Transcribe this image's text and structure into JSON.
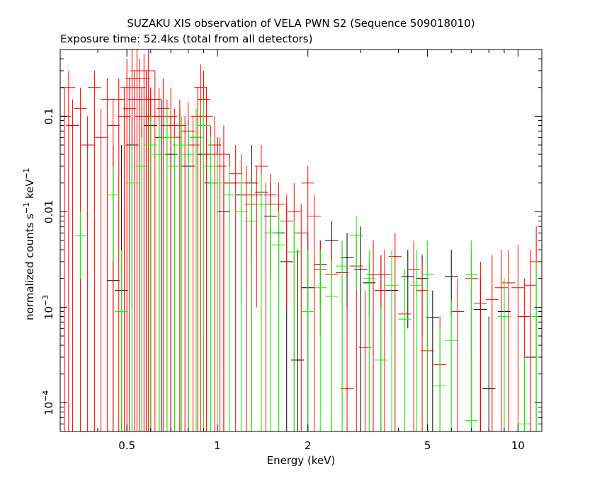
{
  "chart_data": {
    "type": "scatter",
    "title": "SUZAKU XIS observation of VELA PWN S2 (Sequence 509018010)",
    "subtitle": "Exposure time: 52.4ks (total from all detectors)",
    "xlabel": "Energy (keV)",
    "ylabel": "normalized counts s-1 keV-1",
    "x_scale": "log",
    "y_scale": "log",
    "xlim": [
      0.3,
      12
    ],
    "ylim": [
      5e-05,
      0.5
    ],
    "x_ticks": [
      {
        "value": 0.5,
        "label": "0.5"
      },
      {
        "value": 1,
        "label": "1"
      },
      {
        "value": 2,
        "label": "2"
      },
      {
        "value": 5,
        "label": "5"
      },
      {
        "value": 10,
        "label": "10"
      }
    ],
    "y_ticks": [
      {
        "value": 0.0001,
        "base": "10",
        "exp": "−4"
      },
      {
        "value": 0.001,
        "base": "10",
        "exp": "−3"
      },
      {
        "value": 0.01,
        "label": "0.01"
      },
      {
        "value": 0.1,
        "label": "0.1"
      }
    ],
    "series": [
      {
        "color": "#000000",
        "points": [
          [
            0.45,
            0.0019,
            0.05,
            -1
          ],
          [
            0.48,
            0.0015,
            0.05,
            -1
          ],
          [
            0.52,
            0.05,
            0.1,
            0.001
          ],
          [
            0.56,
            0.03,
            0.08,
            -1
          ],
          [
            0.6,
            0.08,
            0.2,
            -1
          ],
          [
            0.65,
            0.06,
            0.15,
            -1
          ],
          [
            0.7,
            0.04,
            0.1,
            -1
          ],
          [
            0.75,
            0.05,
            0.12,
            -1
          ],
          [
            0.8,
            0.03,
            0.09,
            -1
          ],
          [
            0.85,
            0.06,
            0.12,
            -1
          ],
          [
            0.9,
            0.04,
            0.1,
            0.0005
          ],
          [
            0.95,
            0.02,
            0.06,
            -1
          ],
          [
            1.0,
            0.03,
            0.06,
            0.0002
          ],
          [
            1.05,
            0.01,
            0.03,
            -1
          ],
          [
            1.1,
            0.02,
            0.04,
            0.002
          ],
          [
            1.2,
            0.015,
            0.03,
            0.001
          ],
          [
            1.3,
            0.02,
            0.05,
            0.003
          ],
          [
            1.4,
            0.016,
            0.03,
            0.004
          ],
          [
            1.5,
            0.009,
            0.02,
            0.002
          ],
          [
            1.6,
            0.006,
            0.012,
            0.0015
          ],
          [
            1.7,
            0.003,
            0.012,
            -1
          ],
          [
            1.85,
            0.00028,
            0.004,
            -1
          ],
          [
            2.0,
            0.0016,
            0.006,
            -1
          ],
          [
            2.2,
            0.0028,
            0.005,
            0.001
          ],
          [
            2.4,
            0.005,
            0.008,
            0.002
          ],
          [
            2.7,
            0.0033,
            0.006,
            0.001
          ],
          [
            3.0,
            0.0025,
            0.007,
            -1
          ],
          [
            3.2,
            0.0018,
            0.003,
            0.0008
          ],
          [
            3.5,
            0.0015,
            0.0035,
            -1
          ],
          [
            3.8,
            0.0015,
            0.003,
            0.0005
          ],
          [
            4.3,
            0.0021,
            0.004,
            0.0006
          ],
          [
            4.8,
            0.002,
            0.0035,
            0.0005
          ],
          [
            5.2,
            0.00078,
            0.0015,
            -1
          ],
          [
            6.0,
            0.0021,
            0.004,
            0.0008
          ],
          [
            7.5,
            0.00095,
            0.002,
            -1
          ],
          [
            8.0,
            0.00014,
            0.0008,
            -1
          ],
          [
            9.0,
            0.0009,
            0.002,
            -1
          ],
          [
            11.0,
            0.0003,
            0.0008,
            -1
          ]
        ]
      },
      {
        "color": "#ff0000",
        "points": [
          [
            0.31,
            0.1,
            0.2,
            -1
          ],
          [
            0.32,
            0.2,
            0.3,
            -1
          ],
          [
            0.33,
            0.08,
            0.15,
            -1
          ],
          [
            0.35,
            0.12,
            0.2,
            -1
          ],
          [
            0.37,
            0.05,
            0.1,
            -1
          ],
          [
            0.39,
            0.2,
            0.3,
            -1
          ],
          [
            0.41,
            0.06,
            0.12,
            -1
          ],
          [
            0.43,
            0.15,
            0.25,
            -1
          ],
          [
            0.45,
            0.08,
            0.15,
            -1
          ],
          [
            0.47,
            0.15,
            0.25,
            -1
          ],
          [
            0.49,
            0.1,
            0.2,
            -1
          ],
          [
            0.5,
            0.2,
            0.4,
            -1
          ],
          [
            0.51,
            0.12,
            0.25,
            -1
          ],
          [
            0.52,
            0.25,
            0.5,
            -1
          ],
          [
            0.53,
            0.15,
            0.3,
            -1
          ],
          [
            0.54,
            0.3,
            0.5,
            -1
          ],
          [
            0.55,
            0.2,
            0.4,
            -1
          ],
          [
            0.56,
            0.1,
            0.2,
            -1
          ],
          [
            0.57,
            0.25,
            0.45,
            -1
          ],
          [
            0.58,
            0.15,
            0.3,
            -1
          ],
          [
            0.59,
            0.3,
            0.5,
            -1
          ],
          [
            0.6,
            0.1,
            0.2,
            -1
          ],
          [
            0.62,
            0.15,
            0.3,
            -1
          ],
          [
            0.64,
            0.1,
            0.2,
            -1
          ],
          [
            0.66,
            0.12,
            0.25,
            -1
          ],
          [
            0.68,
            0.08,
            0.15,
            -1
          ],
          [
            0.7,
            0.1,
            0.2,
            -1
          ],
          [
            0.72,
            0.06,
            0.12,
            -1
          ],
          [
            0.75,
            0.08,
            0.15,
            -1
          ],
          [
            0.78,
            0.05,
            0.1,
            -1
          ],
          [
            0.8,
            0.07,
            0.14,
            -1
          ],
          [
            0.83,
            0.05,
            0.1,
            -1
          ],
          [
            0.86,
            0.1,
            0.2,
            -1
          ],
          [
            0.88,
            0.2,
            0.35,
            -1
          ],
          [
            0.9,
            0.15,
            0.3,
            -1
          ],
          [
            0.92,
            0.1,
            0.2,
            -1
          ],
          [
            0.95,
            0.04,
            0.08,
            -1
          ],
          [
            0.98,
            0.05,
            0.1,
            -1
          ],
          [
            1.02,
            0.03,
            0.06,
            -1
          ],
          [
            1.05,
            0.04,
            0.08,
            -1
          ],
          [
            1.1,
            0.02,
            0.04,
            -1
          ],
          [
            1.15,
            0.025,
            0.05,
            -1
          ],
          [
            1.2,
            0.02,
            0.04,
            0.002
          ],
          [
            1.25,
            0.015,
            0.03,
            -1
          ],
          [
            1.3,
            0.012,
            0.025,
            -1
          ],
          [
            1.35,
            0.015,
            0.03,
            0.001
          ],
          [
            1.4,
            0.03,
            0.05,
            -1
          ],
          [
            1.45,
            0.012,
            0.02,
            -1
          ],
          [
            1.5,
            0.015,
            0.025,
            0.002
          ],
          [
            1.6,
            0.012,
            0.02,
            -1
          ],
          [
            1.7,
            0.008,
            0.015,
            0.001
          ],
          [
            1.8,
            0.01,
            0.02,
            -1
          ],
          [
            1.9,
            0.006,
            0.012,
            -1
          ],
          [
            2.0,
            0.02,
            0.03,
            0.001
          ],
          [
            2.1,
            0.009,
            0.015,
            -1
          ],
          [
            2.2,
            0.0025,
            0.005,
            0.0005
          ],
          [
            2.4,
            0.0022,
            0.005,
            -1
          ],
          [
            2.6,
            0.0023,
            0.005,
            -1
          ],
          [
            2.7,
            0.00014,
            0.001,
            -1
          ],
          [
            2.9,
            0.0027,
            0.006,
            -1
          ],
          [
            3.1,
            0.00038,
            0.0015,
            -1
          ],
          [
            3.3,
            0.0022,
            0.005,
            -1
          ],
          [
            3.5,
            0.0015,
            0.0035,
            -1
          ],
          [
            3.6,
            0.0022,
            0.004,
            -1
          ],
          [
            3.9,
            0.0034,
            0.006,
            -1
          ],
          [
            4.2,
            0.00085,
            0.002,
            -1
          ],
          [
            4.5,
            0.0025,
            0.005,
            -1
          ],
          [
            4.8,
            0.0015,
            0.003,
            -1
          ],
          [
            5.0,
            0.00035,
            0.001,
            -1
          ],
          [
            5.5,
            0.00025,
            0.0008,
            -1
          ],
          [
            6.3,
            0.0009,
            0.002,
            -1
          ],
          [
            7.0,
            0.002,
            0.004,
            -1
          ],
          [
            7.5,
            0.0011,
            0.003,
            -1
          ],
          [
            8.2,
            0.0012,
            0.0035,
            -1
          ],
          [
            8.8,
            0.0016,
            0.004,
            -1
          ],
          [
            9.3,
            0.0018,
            0.004,
            -1
          ],
          [
            10.0,
            0.0016,
            0.0045,
            -1
          ],
          [
            10.5,
            0.0008,
            0.002,
            -1
          ],
          [
            11.0,
            0.0017,
            0.004,
            -1
          ],
          [
            11.5,
            0.003,
            0.007,
            -1
          ]
        ]
      },
      {
        "color": "#00ff00",
        "points": [
          [
            0.35,
            0.0056,
            0.01,
            0.002
          ],
          [
            0.45,
            0.015,
            0.03,
            0.003
          ],
          [
            0.48,
            0.0009,
            0.004,
            -1
          ],
          [
            0.52,
            0.02,
            0.05,
            -1
          ],
          [
            0.56,
            0.03,
            0.06,
            -1
          ],
          [
            0.6,
            0.05,
            0.1,
            -1
          ],
          [
            0.64,
            0.04,
            0.08,
            -1
          ],
          [
            0.68,
            0.06,
            0.12,
            -1
          ],
          [
            0.72,
            0.03,
            0.06,
            -1
          ],
          [
            0.76,
            0.05,
            0.1,
            -1
          ],
          [
            0.8,
            0.04,
            0.08,
            -1
          ],
          [
            0.85,
            0.06,
            0.12,
            -1
          ],
          [
            0.9,
            0.08,
            0.15,
            -1
          ],
          [
            0.95,
            0.03,
            0.06,
            -1
          ],
          [
            1.0,
            0.02,
            0.04,
            -1
          ],
          [
            1.1,
            0.015,
            0.03,
            -1
          ],
          [
            1.2,
            0.01,
            0.025,
            -1
          ],
          [
            1.3,
            0.008,
            0.02,
            -1
          ],
          [
            1.4,
            0.012,
            0.025,
            -1
          ],
          [
            1.5,
            0.006,
            0.012,
            -1
          ],
          [
            1.6,
            0.0045,
            0.01,
            -1
          ],
          [
            1.8,
            0.0038,
            0.008,
            -1
          ],
          [
            2.0,
            0.0009,
            0.004,
            -1
          ],
          [
            2.2,
            0.0016,
            0.004,
            -1
          ],
          [
            2.4,
            0.0013,
            0.003,
            -1
          ],
          [
            2.6,
            0.0027,
            0.005,
            -1
          ],
          [
            2.9,
            0.0057,
            0.009,
            0.0015
          ],
          [
            3.2,
            0.002,
            0.004,
            -1
          ],
          [
            3.5,
            0.00028,
            0.001,
            -1
          ],
          [
            3.8,
            0.0017,
            0.004,
            -1
          ],
          [
            4.2,
            0.00075,
            0.0025,
            -1
          ],
          [
            4.6,
            0.0017,
            0.004,
            -1
          ],
          [
            5.0,
            0.0022,
            0.005,
            -1
          ],
          [
            5.5,
            0.00015,
            0.0006,
            -1
          ],
          [
            6.0,
            0.00045,
            0.0012,
            -1
          ],
          [
            7.0,
            0.0022,
            0.005,
            -1
          ],
          [
            7.0,
            6.5e-05,
            0.0003,
            -1
          ],
          [
            9.0,
            0.0008,
            0.002,
            -1
          ],
          [
            10.5,
            6e-05,
            0.0003,
            -1
          ],
          [
            11.5,
            0.0008,
            0.003,
            -1
          ]
        ]
      }
    ]
  }
}
